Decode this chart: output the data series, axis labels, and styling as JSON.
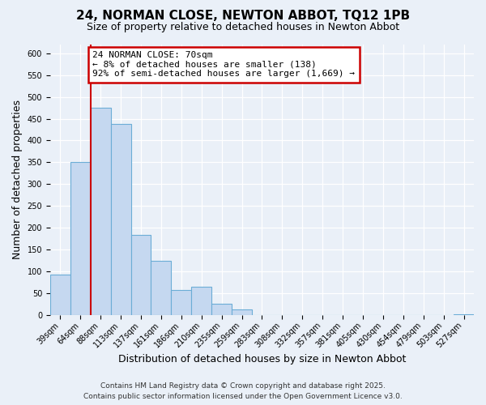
{
  "title": "24, NORMAN CLOSE, NEWTON ABBOT, TQ12 1PB",
  "subtitle": "Size of property relative to detached houses in Newton Abbot",
  "xlabel": "Distribution of detached houses by size in Newton Abbot",
  "ylabel": "Number of detached properties",
  "bin_labels": [
    "39sqm",
    "64sqm",
    "88sqm",
    "113sqm",
    "137sqm",
    "161sqm",
    "186sqm",
    "210sqm",
    "235sqm",
    "259sqm",
    "283sqm",
    "308sqm",
    "332sqm",
    "357sqm",
    "381sqm",
    "405sqm",
    "430sqm",
    "454sqm",
    "479sqm",
    "503sqm",
    "527sqm"
  ],
  "bar_values": [
    93,
    350,
    475,
    438,
    183,
    125,
    58,
    65,
    25,
    13,
    0,
    0,
    0,
    0,
    0,
    0,
    0,
    0,
    0,
    0,
    2
  ],
  "bar_color": "#c5d8f0",
  "bar_edge_color": "#6badd6",
  "ylim": [
    0,
    620
  ],
  "yticks": [
    0,
    50,
    100,
    150,
    200,
    250,
    300,
    350,
    400,
    450,
    500,
    550,
    600
  ],
  "vline_x": 1.5,
  "vline_color": "#cc0000",
  "annotation_text": "24 NORMAN CLOSE: 70sqm\n← 8% of detached houses are smaller (138)\n92% of semi-detached houses are larger (1,669) →",
  "annotation_box_color": "#ffffff",
  "annotation_box_edge": "#cc0000",
  "footer_line1": "Contains HM Land Registry data © Crown copyright and database right 2025.",
  "footer_line2": "Contains public sector information licensed under the Open Government Licence v3.0.",
  "background_color": "#eaf0f8",
  "plot_bg_color": "#eaf0f8",
  "title_fontsize": 11,
  "subtitle_fontsize": 9,
  "axis_label_fontsize": 9,
  "tick_fontsize": 7,
  "footer_fontsize": 6.5,
  "annotation_fontsize": 8
}
